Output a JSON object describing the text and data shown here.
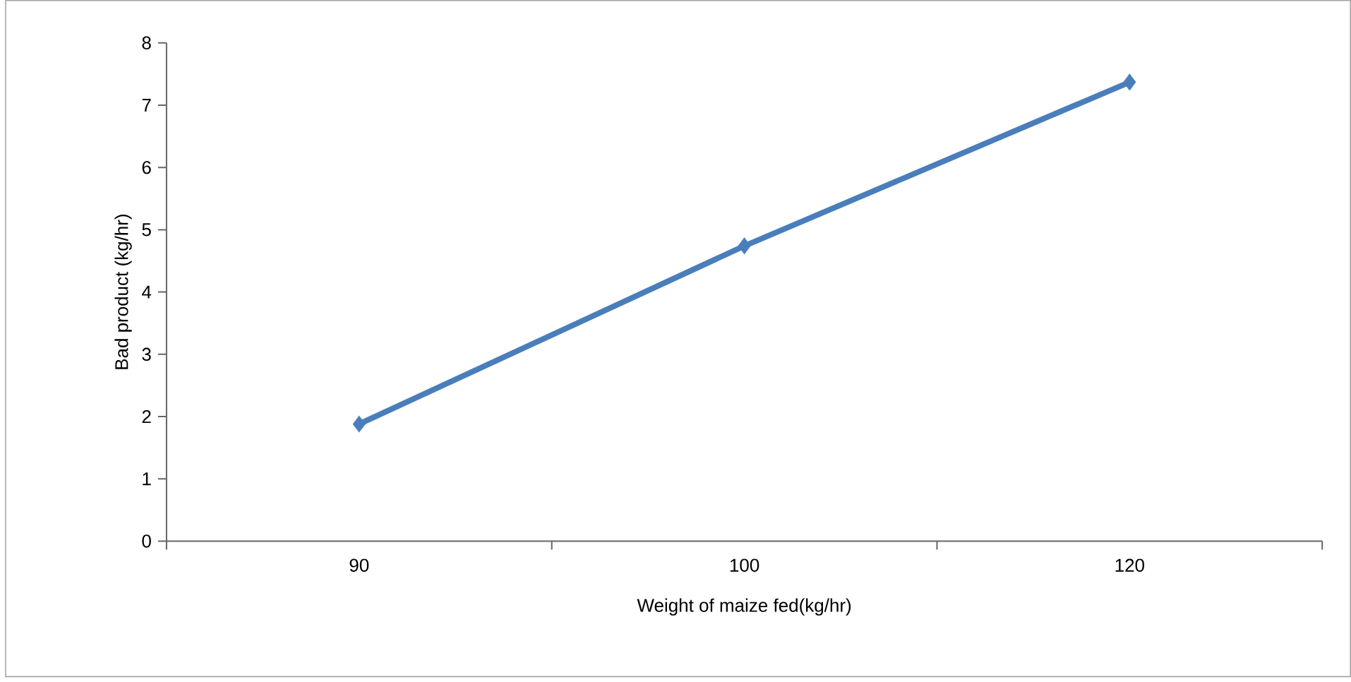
{
  "chart_data": {
    "type": "line",
    "xlabel": "Weight of maize fed(kg/hr)",
    "ylabel": "Bad product (kg/hr)",
    "categories": [
      "90",
      "100",
      "120"
    ],
    "series": [
      {
        "color": "#4a7ebb",
        "values": [
          1.88,
          4.74,
          7.37
        ]
      }
    ],
    "ylim": [
      0,
      8
    ],
    "yticks": [
      0,
      1,
      2,
      3,
      4,
      5,
      6,
      7,
      8
    ],
    "marker": "diamond",
    "line_style": "solid",
    "grid": false
  }
}
